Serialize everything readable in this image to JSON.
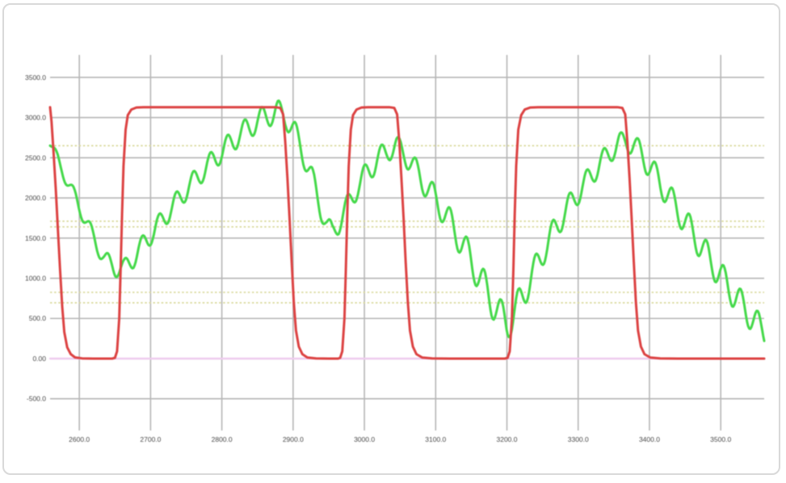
{
  "window": {
    "background_color": "#ffffff",
    "frame_border_color": "#d9d9d9"
  },
  "chart_data": {
    "type": "line",
    "title": "",
    "xlabel": "",
    "ylabel": "",
    "xlim": [
      2559,
      3561
    ],
    "ylim": [
      -895,
      3780
    ],
    "grid": {
      "on": true,
      "color": "#b6b6b6",
      "tick_label_color": "#4a4a4a"
    },
    "x_ticks": {
      "values": [
        2600,
        2700,
        2800,
        2900,
        3000,
        3100,
        3200,
        3300,
        3400,
        3500
      ],
      "labels": [
        "2600.0",
        "2700.0",
        "2800.0",
        "2900.0",
        "3000.0",
        "3100.0",
        "3200.0",
        "3300.0",
        "3400.0",
        "3500.0"
      ]
    },
    "y_ticks": {
      "values": [
        3500,
        3000,
        2500,
        2000,
        1500,
        1000,
        500,
        0,
        -500
      ],
      "labels": [
        "3500.0",
        "3000.0",
        "2500.0",
        "2000.0",
        "1500.0",
        "1000.0",
        "500.0",
        "0.00",
        "-500.0"
      ]
    },
    "guide_lines": {
      "style": "dotted",
      "color": "#d9d99c",
      "values": [
        2650,
        1710,
        1640,
        825,
        695
      ]
    },
    "legend": {
      "visible": false
    },
    "series": [
      {
        "name": "zero-baseline",
        "type": "constant",
        "color": "#eeccee",
        "stroke_width": 2.4,
        "points": [
          [
            2559,
            0
          ],
          [
            3561,
            0
          ]
        ]
      },
      {
        "name": "oscillating-response",
        "type": "envelope-ripple",
        "color": "#45d94a",
        "stroke_width": 3,
        "envelope": [
          [
            2559,
            2700
          ],
          [
            2572,
            2420
          ],
          [
            2588,
            2120
          ],
          [
            2604,
            1820
          ],
          [
            2620,
            1500
          ],
          [
            2636,
            1230
          ],
          [
            2650,
            1130
          ],
          [
            2663,
            1120
          ],
          [
            2676,
            1250
          ],
          [
            2692,
            1450
          ],
          [
            2710,
            1650
          ],
          [
            2730,
            1880
          ],
          [
            2752,
            2120
          ],
          [
            2776,
            2360
          ],
          [
            2800,
            2580
          ],
          [
            2824,
            2780
          ],
          [
            2846,
            2930
          ],
          [
            2864,
            3030
          ],
          [
            2878,
            3070
          ],
          [
            2890,
            3010
          ],
          [
            2902,
            2820
          ],
          [
            2914,
            2560
          ],
          [
            2926,
            2260
          ],
          [
            2938,
            1900
          ],
          [
            2948,
            1640
          ],
          [
            2955,
            1570
          ],
          [
            2964,
            1680
          ],
          [
            2976,
            1900
          ],
          [
            2990,
            2130
          ],
          [
            3005,
            2330
          ],
          [
            3020,
            2490
          ],
          [
            3034,
            2600
          ],
          [
            3045,
            2640
          ],
          [
            3056,
            2560
          ],
          [
            3068,
            2400
          ],
          [
            3082,
            2210
          ],
          [
            3096,
            2030
          ],
          [
            3110,
            1850
          ],
          [
            3124,
            1640
          ],
          [
            3138,
            1420
          ],
          [
            3152,
            1180
          ],
          [
            3166,
            940
          ],
          [
            3180,
            700
          ],
          [
            3192,
            520
          ],
          [
            3200,
            440
          ],
          [
            3208,
            520
          ],
          [
            3220,
            740
          ],
          [
            3234,
            1010
          ],
          [
            3250,
            1310
          ],
          [
            3266,
            1590
          ],
          [
            3282,
            1830
          ],
          [
            3298,
            2040
          ],
          [
            3314,
            2230
          ],
          [
            3330,
            2420
          ],
          [
            3346,
            2580
          ],
          [
            3358,
            2680
          ],
          [
            3368,
            2710
          ],
          [
            3378,
            2660
          ],
          [
            3390,
            2530
          ],
          [
            3404,
            2340
          ],
          [
            3420,
            2120
          ],
          [
            3436,
            1900
          ],
          [
            3452,
            1680
          ],
          [
            3468,
            1460
          ],
          [
            3484,
            1240
          ],
          [
            3500,
            1030
          ],
          [
            3516,
            830
          ],
          [
            3532,
            640
          ],
          [
            3546,
            480
          ],
          [
            3556,
            380
          ],
          [
            3561,
            340
          ]
        ],
        "ripple": {
          "period": 24,
          "phase_ref": 2562,
          "amplitude": [
            [
              2559,
              70
            ],
            [
              2600,
              95
            ],
            [
              2640,
              110
            ],
            [
              2690,
              125
            ],
            [
              2760,
              130
            ],
            [
              2830,
              140
            ],
            [
              2880,
              150
            ],
            [
              2930,
              145
            ],
            [
              2955,
              125
            ],
            [
              3000,
              145
            ],
            [
              3045,
              135
            ],
            [
              3100,
              165
            ],
            [
              3150,
              195
            ],
            [
              3200,
              215
            ],
            [
              3240,
              170
            ],
            [
              3300,
              145
            ],
            [
              3360,
              130
            ],
            [
              3410,
              160
            ],
            [
              3460,
              175
            ],
            [
              3520,
              180
            ],
            [
              3561,
              170
            ]
          ]
        }
      },
      {
        "name": "setpoint-square-wave",
        "type": "line",
        "color": "#dc4343",
        "stroke_width": 3,
        "points": [
          [
            2559,
            3130
          ],
          [
            2561,
            2950
          ],
          [
            2564,
            2550
          ],
          [
            2567,
            2100
          ],
          [
            2570,
            1600
          ],
          [
            2573,
            1100
          ],
          [
            2576,
            650
          ],
          [
            2579,
            330
          ],
          [
            2583,
            140
          ],
          [
            2588,
            55
          ],
          [
            2594,
            15
          ],
          [
            2604,
            3
          ],
          [
            2620,
            0
          ],
          [
            2646,
            0
          ],
          [
            2650,
            10
          ],
          [
            2653,
            90
          ],
          [
            2656,
            500
          ],
          [
            2658,
            1100
          ],
          [
            2660,
            1800
          ],
          [
            2662,
            2400
          ],
          [
            2665,
            2850
          ],
          [
            2668,
            3030
          ],
          [
            2673,
            3100
          ],
          [
            2680,
            3125
          ],
          [
            2690,
            3130
          ],
          [
            2875,
            3130
          ],
          [
            2882,
            3120
          ],
          [
            2886,
            3040
          ],
          [
            2889,
            2700
          ],
          [
            2892,
            2250
          ],
          [
            2895,
            1750
          ],
          [
            2898,
            1200
          ],
          [
            2901,
            700
          ],
          [
            2904,
            350
          ],
          [
            2908,
            150
          ],
          [
            2913,
            55
          ],
          [
            2920,
            14
          ],
          [
            2932,
            3
          ],
          [
            2950,
            0
          ],
          [
            2963,
            0
          ],
          [
            2966,
            10
          ],
          [
            2969,
            90
          ],
          [
            2972,
            500
          ],
          [
            2974,
            1100
          ],
          [
            2976,
            1800
          ],
          [
            2978,
            2400
          ],
          [
            2981,
            2850
          ],
          [
            2984,
            3030
          ],
          [
            2989,
            3100
          ],
          [
            2996,
            3125
          ],
          [
            3005,
            3130
          ],
          [
            3035,
            3130
          ],
          [
            3042,
            3120
          ],
          [
            3046,
            3040
          ],
          [
            3049,
            2700
          ],
          [
            3052,
            2250
          ],
          [
            3055,
            1750
          ],
          [
            3058,
            1200
          ],
          [
            3061,
            700
          ],
          [
            3064,
            350
          ],
          [
            3068,
            150
          ],
          [
            3073,
            55
          ],
          [
            3081,
            14
          ],
          [
            3095,
            3
          ],
          [
            3120,
            0
          ],
          [
            3197,
            0
          ],
          [
            3201,
            10
          ],
          [
            3204,
            90
          ],
          [
            3207,
            500
          ],
          [
            3209,
            1100
          ],
          [
            3211,
            1800
          ],
          [
            3213,
            2400
          ],
          [
            3216,
            2850
          ],
          [
            3220,
            3030
          ],
          [
            3225,
            3100
          ],
          [
            3233,
            3125
          ],
          [
            3244,
            3130
          ],
          [
            3355,
            3130
          ],
          [
            3362,
            3120
          ],
          [
            3366,
            3040
          ],
          [
            3369,
            2700
          ],
          [
            3372,
            2250
          ],
          [
            3375,
            1750
          ],
          [
            3378,
            1200
          ],
          [
            3381,
            700
          ],
          [
            3384,
            350
          ],
          [
            3388,
            150
          ],
          [
            3393,
            55
          ],
          [
            3401,
            14
          ],
          [
            3415,
            3
          ],
          [
            3440,
            0
          ],
          [
            3561,
            0
          ]
        ]
      }
    ]
  }
}
